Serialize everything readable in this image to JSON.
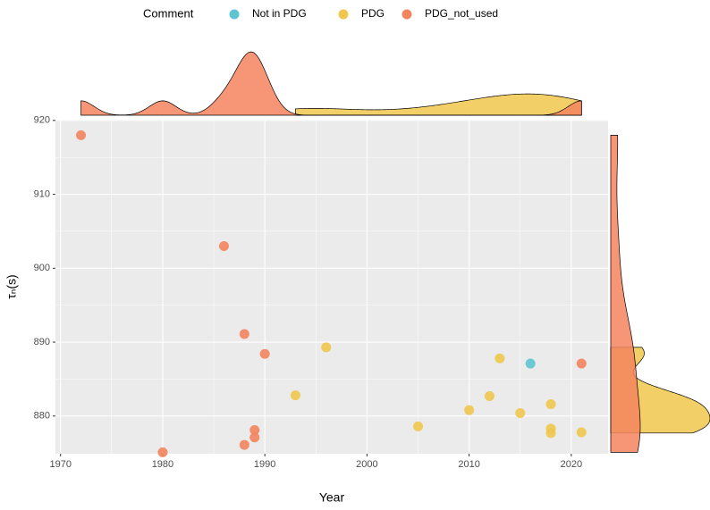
{
  "chart_data": {
    "type": "scatter",
    "x_label": "Year",
    "y_label": "τₙ(s)",
    "legend_title": "Comment",
    "xlim": [
      1969.5,
      2023.6
    ],
    "xticks": [
      1970,
      1980,
      1990,
      2000,
      2010,
      2020
    ],
    "ylim": [
      874.9,
      920.1
    ],
    "yticks": [
      880,
      890,
      900,
      910,
      920
    ],
    "grid": true,
    "legend": "top",
    "marginal": "density",
    "series": [
      {
        "name": "Not in PDG",
        "color": "#5ec4cf",
        "x": [
          2016
        ],
        "y": [
          887.1
        ]
      },
      {
        "name": "PDG",
        "color": "#f0c74c",
        "x": [
          1993,
          1996,
          2005,
          2010,
          2012,
          2013,
          2015,
          2018,
          2018,
          2018,
          2021
        ],
        "y": [
          882.8,
          889.3,
          878.6,
          880.8,
          882.7,
          887.8,
          880.4,
          881.6,
          878.3,
          877.7,
          877.8
        ]
      },
      {
        "name": "PDG_not_used",
        "color": "#f4845e",
        "x": [
          1972,
          1980,
          1986,
          1988,
          1988,
          1989,
          1989,
          1990,
          2021
        ],
        "y": [
          918,
          875.1,
          903,
          891.1,
          876.1,
          878.1,
          877.1,
          888.4,
          887.1
        ]
      }
    ]
  }
}
